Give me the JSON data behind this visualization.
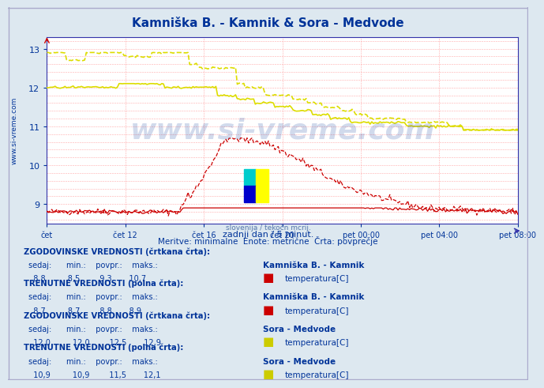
{
  "title": "Kamniška B. - Kamnik & Sora - Medvode",
  "title_color": "#003399",
  "bg_color": "#dde8f0",
  "plot_bg_color": "#ffffff",
  "x_label_color": "#003399",
  "y_label_color": "#003399",
  "watermark_text": "www.si-vreme.com",
  "subtitle2": "zadnji dan / 5 minut.",
  "subtitle3": "Meritve: minimalne  Enote: metrične  Črta: povprečje",
  "n_points": 288,
  "ylim": [
    8.5,
    13.3
  ],
  "yticks": [
    9,
    10,
    11,
    12,
    13
  ],
  "x_tick_labels": [
    "čet",
    "čet 12",
    "čet 16",
    "čet 20",
    "pet 00:00",
    "pet 04:00",
    "pet 08:00"
  ],
  "stat_box": [
    {
      "header": "ZGODOVINSKE VREDNOSTI (črtkana črta):",
      "sedaj": "8,8",
      "min": "8,5",
      "povpr": "9,3",
      "maks": "10,7",
      "station": "Kamniška B. - Kamnik",
      "param": "temperatura[C]",
      "color": "#cc0000"
    },
    {
      "header": "TRENUTNE VREDNOSTI (polna črta):",
      "sedaj": "8,7",
      "min": "8,7",
      "povpr": "8,8",
      "maks": "8,9",
      "station": "Kamniška B. - Kamnik",
      "param": "temperatura[C]",
      "color": "#cc0000"
    },
    {
      "header": "ZGODOVINSKE VREDNOSTI (črtkana črta):",
      "sedaj": "12,0",
      "min": "12,0",
      "povpr": "12,5",
      "maks": "12,9",
      "station": "Sora - Medvode",
      "param": "temperatura[C]",
      "color": "#cccc00"
    },
    {
      "header": "TRENUTNE VREDNOSTI (polna črta):",
      "sedaj": "10,9",
      "min": "10,9",
      "povpr": "11,5",
      "maks": "12,1",
      "station": "Sora - Medvode",
      "param": "temperatura[C]",
      "color": "#cccc00"
    }
  ]
}
